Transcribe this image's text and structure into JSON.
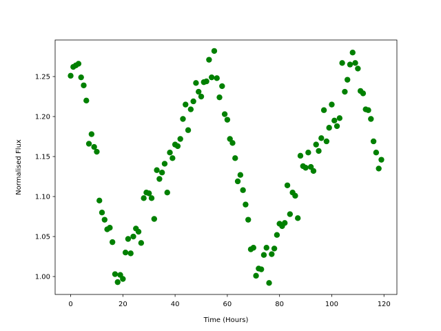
{
  "chart_data": {
    "type": "scatter",
    "xlabel": "Time (Hours)",
    "ylabel": "Normalised Flux",
    "color": "#008000",
    "grid": false,
    "x": [
      0,
      1,
      2,
      3,
      4,
      5,
      6,
      7,
      8,
      9,
      10,
      11,
      12,
      13,
      14,
      15,
      16,
      17,
      18,
      19,
      20,
      21,
      22,
      23,
      24,
      25,
      26,
      27,
      28,
      29,
      30,
      31,
      32,
      33,
      34,
      35,
      36,
      37,
      38,
      39,
      40,
      41,
      42,
      43,
      44,
      45,
      46,
      47,
      48,
      49,
      50,
      51,
      52,
      53,
      54,
      55,
      56,
      57,
      58,
      59,
      60,
      61,
      62,
      63,
      64,
      65,
      66,
      67,
      68,
      69,
      70,
      71,
      72,
      73,
      74,
      75,
      76,
      77,
      78,
      79,
      80,
      81,
      82,
      83,
      84,
      85,
      86,
      87,
      88,
      89,
      90,
      91,
      92,
      93,
      94,
      95,
      96,
      97,
      98,
      99,
      100,
      101,
      102,
      103,
      104,
      105,
      106,
      107,
      108,
      109,
      110,
      111,
      112,
      113,
      114,
      115,
      116,
      117,
      118,
      119
    ],
    "values": [
      1.251,
      1.262,
      1.264,
      1.266,
      1.249,
      1.239,
      1.22,
      1.166,
      1.178,
      1.162,
      1.156,
      1.095,
      1.08,
      1.071,
      1.059,
      1.061,
      1.043,
      1.003,
      0.993,
      1.002,
      0.997,
      1.03,
      1.047,
      1.029,
      1.05,
      1.06,
      1.056,
      1.042,
      1.098,
      1.105,
      1.104,
      1.098,
      1.072,
      1.133,
      1.122,
      1.13,
      1.141,
      1.105,
      1.155,
      1.148,
      1.165,
      1.163,
      1.172,
      1.197,
      1.215,
      1.183,
      1.209,
      1.219,
      1.242,
      1.231,
      1.225,
      1.243,
      1.244,
      1.271,
      1.249,
      1.282,
      1.248,
      1.224,
      1.238,
      1.203,
      1.196,
      1.172,
      1.167,
      1.148,
      1.119,
      1.127,
      1.108,
      1.09,
      1.071,
      1.034,
      1.036,
      1.001,
      1.01,
      1.009,
      1.027,
      1.036,
      0.992,
      1.028,
      1.035,
      1.052,
      1.066,
      1.063,
      1.067,
      1.114,
      1.078,
      1.105,
      1.101,
      1.073,
      1.151,
      1.138,
      1.136,
      1.155,
      1.137,
      1.132,
      1.165,
      1.157,
      1.173,
      1.208,
      1.169,
      1.186,
      1.215,
      1.195,
      1.188,
      1.198,
      1.267,
      1.231,
      1.246,
      1.265,
      1.28,
      1.267,
      1.26,
      1.232,
      1.229,
      1.209,
      1.208,
      1.197,
      1.169,
      1.155,
      1.135,
      1.146
    ],
    "xlim": [
      -5.95,
      124.95
    ],
    "xticks": [
      0,
      20,
      40,
      60,
      80,
      100,
      120
    ],
    "ylim": [
      0.9776,
      1.2957
    ],
    "yticks": [
      {
        "value": 1,
        "label": "1.00"
      },
      1.05,
      {
        "value": 1.1,
        "label": "1.10"
      },
      1.15,
      {
        "value": 1.2,
        "label": "1.20"
      },
      1.25
    ]
  }
}
